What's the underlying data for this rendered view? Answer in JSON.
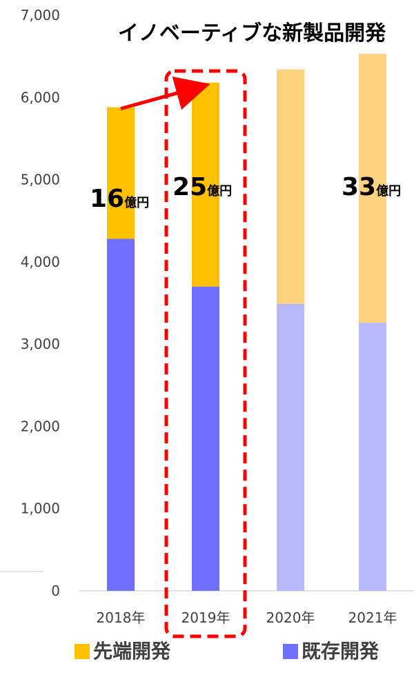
{
  "chart_data": {
    "type": "bar",
    "stacked": true,
    "title": "イノベーティブな新製品開発",
    "categories": [
      "2018年",
      "2019年",
      "2020年",
      "2021年"
    ],
    "ylim": [
      0,
      7000
    ],
    "yticks": [
      "0",
      "1,000",
      "2,000",
      "3,000",
      "4,000",
      "5,000",
      "6,000",
      "7,000"
    ],
    "ytick_values": [
      0,
      1000,
      2000,
      3000,
      4000,
      5000,
      6000,
      7000
    ],
    "series": [
      {
        "name": "既存開発",
        "values": [
          4280,
          3700,
          3490,
          3260
        ],
        "color": "#7070FF",
        "faded_color": "#B8B8FF"
      },
      {
        "name": "先端開発",
        "values": [
          1600,
          2480,
          2850,
          3270
        ],
        "color": "#FFC000",
        "faded_color": "#FFD280"
      }
    ],
    "faded_categories": [
      "2020年",
      "2021年"
    ],
    "highlight_category": "2019年",
    "annotations": [
      {
        "number": "16",
        "unit": "億円",
        "category": "2018年"
      },
      {
        "number": "25",
        "unit": "億円",
        "category": "2019年"
      },
      {
        "number": "33",
        "unit": "億円",
        "category": "2021年"
      }
    ],
    "arrow": {
      "from": "2018年",
      "to": "2019年",
      "color": "#FF0000"
    },
    "legend": [
      {
        "label": "先端開発",
        "color": "#FFC000"
      },
      {
        "label": "既存開発",
        "color": "#7070FF"
      }
    ],
    "legend_position": "bottom",
    "grid": false
  }
}
